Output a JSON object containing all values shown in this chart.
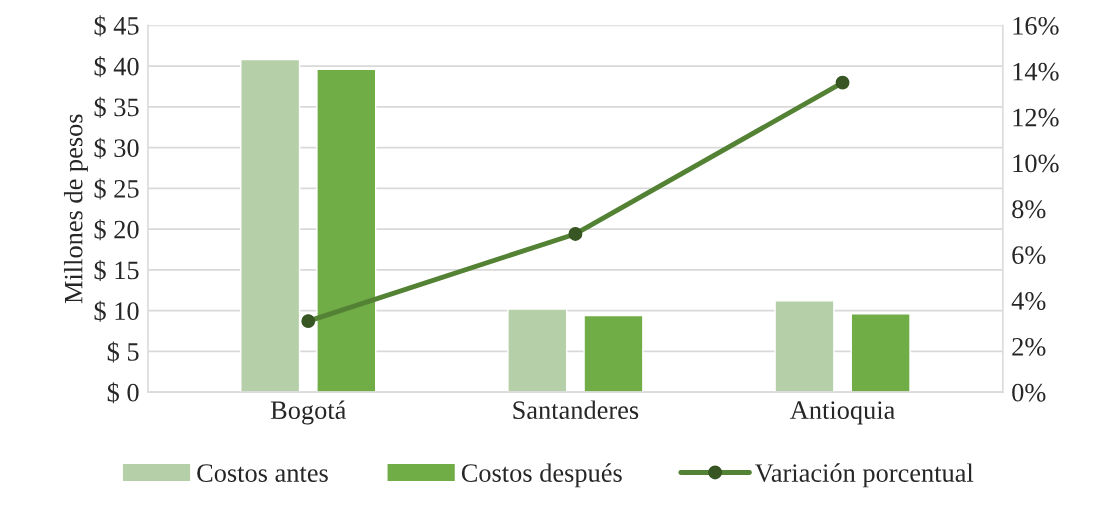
{
  "chart_data": {
    "type": "bar",
    "ylabel": "Millones de pesos",
    "categories": [
      "Bogotá",
      "Santanderes",
      "Antioquia"
    ],
    "series": [
      {
        "name": "Costos antes",
        "color": "#b5d0a8",
        "values": [
          40.8,
          10.2,
          11.2
        ]
      },
      {
        "name": "Costos después",
        "color": "#70ad47",
        "values": [
          39.6,
          9.4,
          9.6
        ]
      },
      {
        "name": "Variación porcentual",
        "type": "line",
        "axis": "y2",
        "color": "#548235",
        "marker": "circle",
        "values": [
          3.1,
          6.9,
          13.5
        ]
      }
    ],
    "ylim": [
      0,
      45
    ],
    "yticks": [
      {
        "value": 0,
        "label": "$ 0"
      },
      {
        "value": 5,
        "label": "$ 5"
      },
      {
        "value": 10,
        "label": "$ 10"
      },
      {
        "value": 15,
        "label": "$ 15"
      },
      {
        "value": 20,
        "label": "$ 20"
      },
      {
        "value": 25,
        "label": "$ 25"
      },
      {
        "value": 30,
        "label": "$ 30"
      },
      {
        "value": 35,
        "label": "$ 35"
      },
      {
        "value": 40,
        "label": "$ 40"
      },
      {
        "value": 45,
        "label": "$ 45"
      }
    ],
    "y2lim": [
      0,
      16
    ],
    "y2ticks": [
      {
        "value": 0,
        "label": "0%"
      },
      {
        "value": 2,
        "label": "2%"
      },
      {
        "value": 4,
        "label": "4%"
      },
      {
        "value": 6,
        "label": "6%"
      },
      {
        "value": 8,
        "label": "8%"
      },
      {
        "value": 10,
        "label": "10%"
      },
      {
        "value": 12,
        "label": "12%"
      },
      {
        "value": 14,
        "label": "14%"
      },
      {
        "value": 16,
        "label": "16%"
      }
    ],
    "grid": "y",
    "legend": "bottom"
  }
}
